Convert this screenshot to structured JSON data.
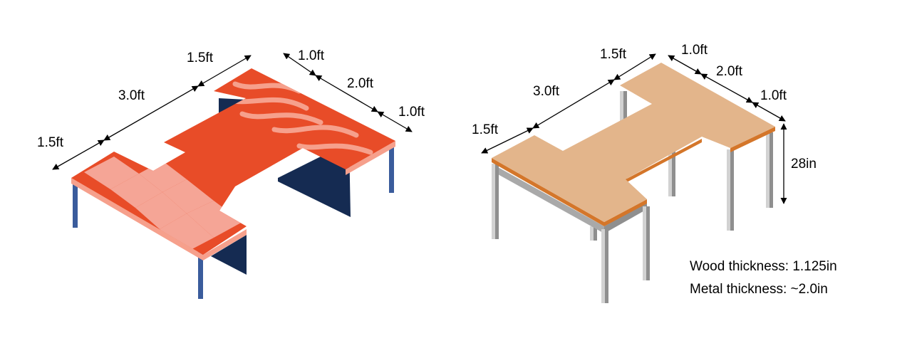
{
  "left_table": {
    "dims": {
      "left_end": "1.5ft",
      "middle": "3.0ft",
      "right_end": "1.5ft",
      "back_top": "1.0ft",
      "back_middle": "2.0ft",
      "back_bottom": "1.0ft"
    },
    "colors": {
      "top": "#E84C28",
      "edge": "#F6A08C",
      "panel": "#152B52",
      "leg": "#3A5C9C",
      "pattern_light": "#F5A596",
      "wave": "#F6A08C"
    }
  },
  "right_table": {
    "dims": {
      "left_end": "1.5ft",
      "middle": "3.0ft",
      "right_end": "1.5ft",
      "back_top": "1.0ft",
      "back_middle": "2.0ft",
      "back_bottom": "1.0ft",
      "height": "28in"
    },
    "colors": {
      "top": "#E3B58B",
      "edge": "#D4762A",
      "leg_light": "#D2D2D2",
      "leg_dark": "#8F8F8F"
    }
  },
  "notes": {
    "wood_thickness": "Wood thickness: 1.125in",
    "metal_thickness": "Metal thickness: ~2.0in"
  }
}
